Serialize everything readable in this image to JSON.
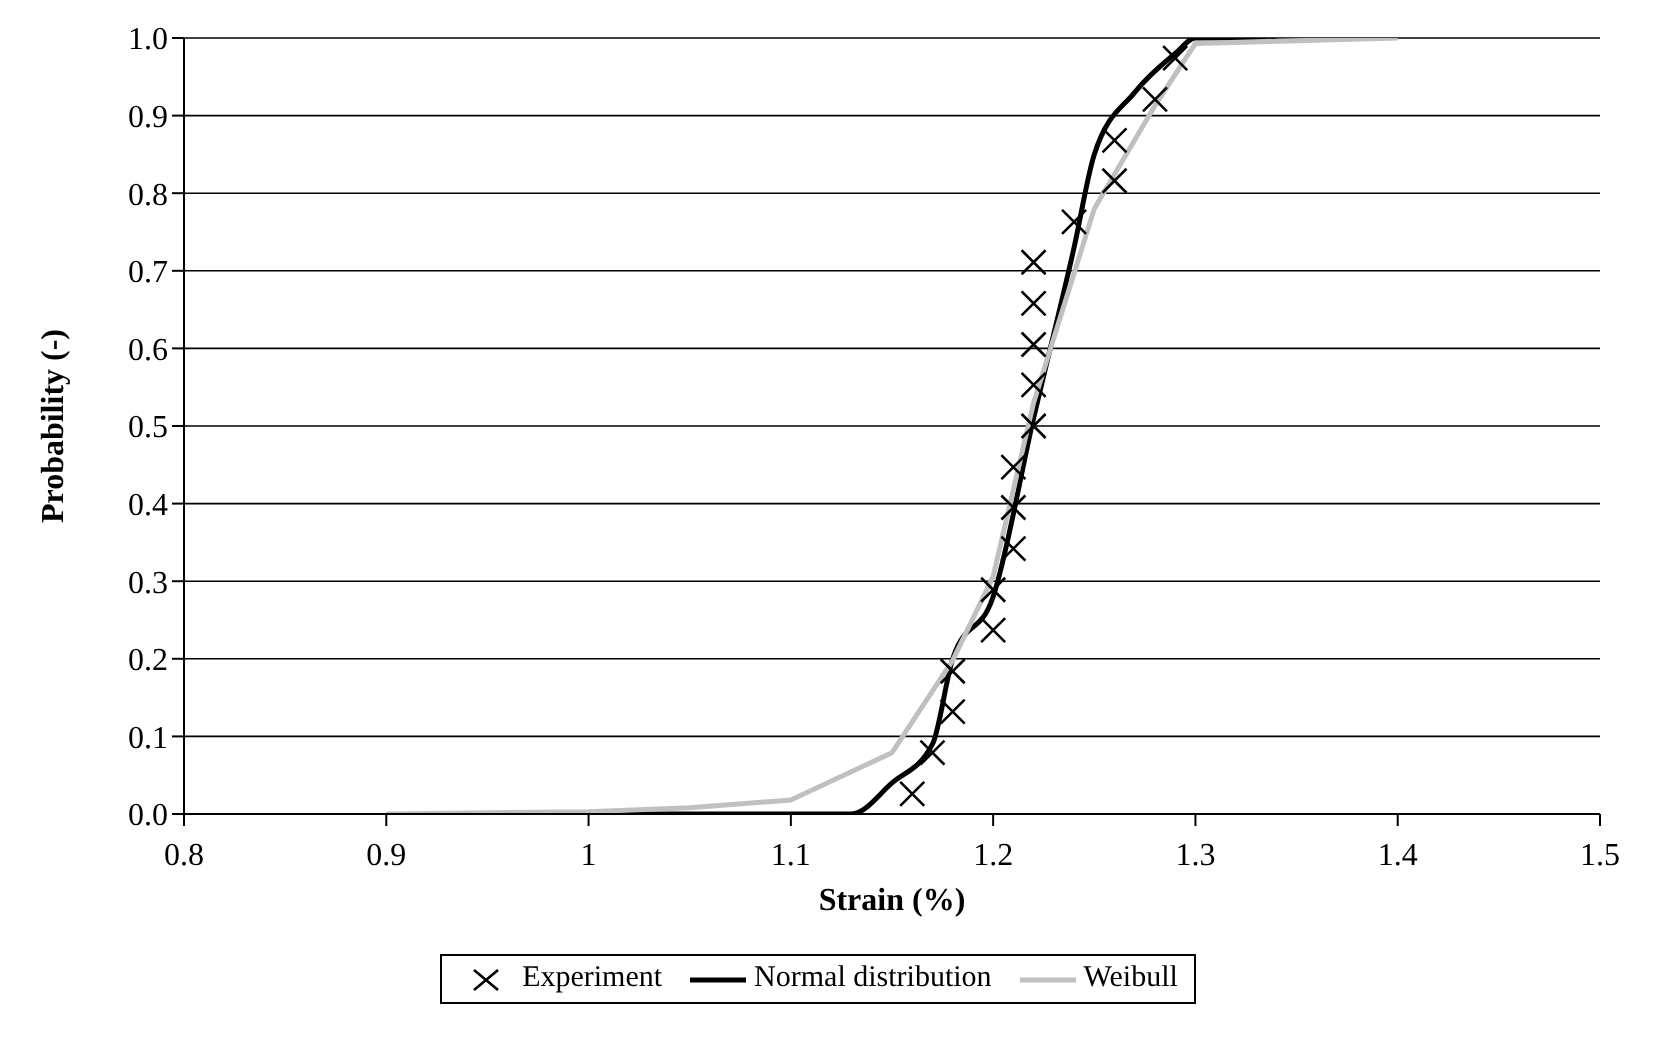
{
  "chart_data": {
    "type": "scatter",
    "xlabel": "Strain (%)",
    "ylabel": "Probability (-)",
    "xlim": [
      0.8,
      1.5
    ],
    "xticks": [
      0.8,
      0.9,
      1,
      1.1,
      1.2,
      1.3,
      1.4,
      1.5
    ],
    "ylim": [
      0,
      1
    ],
    "yticks": [
      {
        "value": 0,
        "label": "0.0"
      },
      0.1,
      0.2,
      0.3,
      0.4,
      0.5,
      0.6,
      0.7,
      0.8,
      0.9,
      {
        "value": 1,
        "label": "1.0"
      }
    ],
    "grid": "y",
    "legend": "bottom",
    "series": [
      {
        "name": "Experiment",
        "marker": "cross",
        "color": "#000000",
        "x": [
          1.16,
          1.17,
          1.18,
          1.18,
          1.2,
          1.2,
          1.21,
          1.21,
          1.21,
          1.22,
          1.22,
          1.22,
          1.22,
          1.22,
          1.24,
          1.26,
          1.26,
          1.28,
          1.29
        ],
        "values": [
          0.026,
          0.079,
          0.132,
          0.184,
          0.237,
          0.289,
          0.342,
          0.395,
          0.447,
          0.5,
          0.553,
          0.605,
          0.658,
          0.711,
          0.763,
          0.816,
          0.868,
          0.921,
          0.974
        ]
      },
      {
        "name": "Normal distribution",
        "type": "line",
        "marker": "none",
        "color": "#000000",
        "x": [
          1.0,
          1.1,
          1.13,
          1.15,
          1.17,
          1.18,
          1.2,
          1.22,
          1.24,
          1.25,
          1.27,
          1.29,
          1.3,
          1.32,
          1.34
        ],
        "values": [
          0,
          0,
          0,
          0.04,
          0.09,
          0.2,
          0.28,
          0.51,
          0.73,
          0.85,
          0.93,
          0.98,
          1.0,
          1.0,
          1.0
        ]
      },
      {
        "name": "Weibull",
        "type": "line",
        "marker": "none",
        "color": "#c0c0c0",
        "x": [
          0.9,
          1.0,
          1.05,
          1.1,
          1.15,
          1.18,
          1.2,
          1.22,
          1.25,
          1.28,
          1.3,
          1.4
        ],
        "values": [
          0,
          0.003,
          0.008,
          0.018,
          0.079,
          0.198,
          0.306,
          0.53,
          0.78,
          0.913,
          0.993,
          1.0
        ]
      }
    ]
  }
}
